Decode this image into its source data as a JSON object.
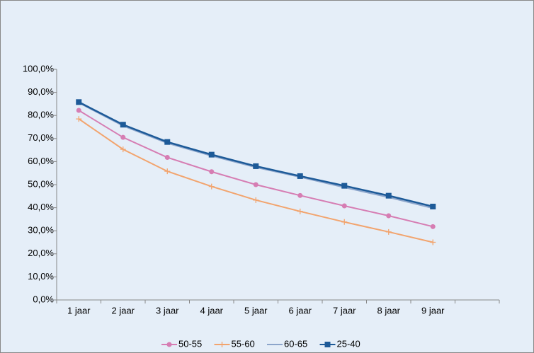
{
  "chart_data": {
    "type": "line",
    "categories": [
      "1 jaar",
      "2 jaar",
      "3 jaar",
      "4 jaar",
      "5 jaar",
      "6 jaar",
      "7 jaar",
      "8 jaar",
      "9 jaar",
      null
    ],
    "series": [
      {
        "name": "50-55",
        "color": "#d67db3",
        "marker": "circle",
        "values": [
          82.2,
          70.5,
          61.8,
          55.6,
          50.0,
          45.3,
          40.8,
          36.5,
          31.8,
          null
        ]
      },
      {
        "name": "55-60",
        "color": "#f2a46e",
        "marker": "plus",
        "values": [
          78.5,
          65.3,
          55.8,
          49.2,
          43.3,
          38.4,
          33.8,
          29.5,
          25.0,
          null
        ]
      },
      {
        "name": "60-65",
        "color": "#8ca5cb",
        "marker": "none",
        "values": [
          85.5,
          75.5,
          68.0,
          62.5,
          57.5,
          53.3,
          48.8,
          44.5,
          39.8,
          null
        ]
      },
      {
        "name": "25-40",
        "color": "#1d5a98",
        "marker": "square",
        "values": [
          85.8,
          76.0,
          68.5,
          63.0,
          58.0,
          53.7,
          49.5,
          45.2,
          40.5,
          null
        ]
      }
    ],
    "ylim": [
      0,
      100
    ],
    "yticks": [
      {
        "value": 0,
        "label": "0,0%"
      },
      {
        "value": 10,
        "label": "10,0%"
      },
      {
        "value": 20,
        "label": "20,0%"
      },
      {
        "value": 30,
        "label": "30,0%"
      },
      {
        "value": 40,
        "label": "40,0%"
      },
      {
        "value": 50,
        "label": "50,0%"
      },
      {
        "value": 60,
        "label": "60,0%"
      },
      {
        "value": 70,
        "label": "70,0%"
      },
      {
        "value": 80,
        "label": "80,0%"
      },
      {
        "value": 90,
        "label": "90,0%"
      },
      {
        "value": 100,
        "label": "100,0%"
      }
    ],
    "grid": false,
    "legend": "bottom"
  }
}
